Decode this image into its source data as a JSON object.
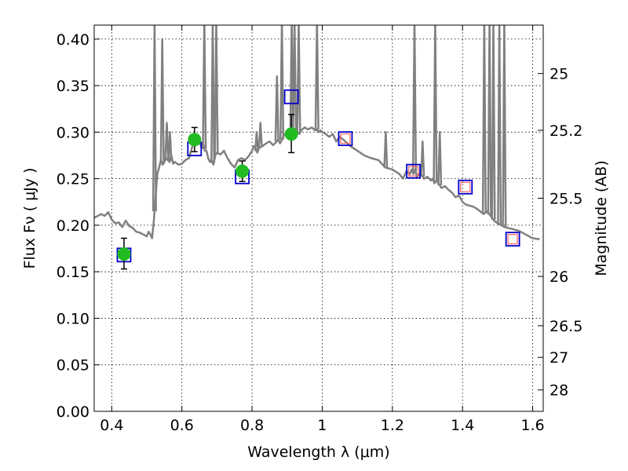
{
  "chart_data": {
    "type": "scatter",
    "xlabel": "Wavelength  λ (μm)",
    "ylabel": "Flux  Fν  ( μJy )",
    "ylabel_right": "Magnitude (AB)",
    "xlim": [
      0.35,
      1.63
    ],
    "ylim": [
      0.0,
      0.415
    ],
    "grid": true,
    "x_ticks": [
      0.4,
      0.6,
      0.8,
      1.0,
      1.2,
      1.4,
      1.6
    ],
    "x_tick_labels": [
      "0.4",
      "0.6",
      "0.8",
      "1",
      "1.2",
      "1.4",
      "1.6"
    ],
    "y_ticks": [
      0.0,
      0.05,
      0.1,
      0.15,
      0.2,
      0.25,
      0.3,
      0.35,
      0.4
    ],
    "y_tick_labels": [
      "0.00",
      "0.05",
      "0.10",
      "0.15",
      "0.20",
      "0.25",
      "0.30",
      "0.35",
      "0.40"
    ],
    "right_ticks": [
      {
        "flux": 0.363,
        "label": "25"
      },
      {
        "flux": 0.302,
        "label": "25.2"
      },
      {
        "flux": 0.229,
        "label": "25.5"
      },
      {
        "flux": 0.145,
        "label": "26"
      },
      {
        "flux": 0.092,
        "label": "26.5"
      },
      {
        "flux": 0.058,
        "label": "27"
      },
      {
        "flux": 0.023,
        "label": "28"
      }
    ],
    "series": [
      {
        "style": "line",
        "color": "#808080",
        "x": [
          0.35,
          0.37,
          0.38,
          0.39,
          0.4,
          0.41,
          0.42,
          0.43,
          0.44,
          0.45,
          0.46,
          0.47,
          0.48,
          0.49,
          0.5,
          0.505,
          0.51,
          0.515,
          0.52,
          0.525,
          0.53,
          0.535,
          0.54,
          0.545,
          0.55,
          0.555,
          0.56,
          0.565,
          0.57,
          0.575,
          0.58,
          0.59,
          0.6,
          0.61,
          0.62,
          0.63,
          0.64,
          0.645,
          0.65,
          0.655,
          0.66,
          0.665,
          0.67,
          0.675,
          0.68,
          0.685,
          0.69,
          0.695,
          0.7,
          0.71,
          0.72,
          0.73,
          0.74,
          0.75,
          0.76,
          0.77,
          0.78,
          0.79,
          0.8,
          0.805,
          0.81,
          0.815,
          0.82,
          0.83,
          0.84,
          0.85,
          0.86,
          0.87,
          0.875,
          0.88,
          0.885,
          0.89,
          0.895,
          0.9,
          0.905,
          0.91,
          0.915,
          0.92,
          0.925,
          0.93,
          0.935,
          0.94,
          0.95,
          0.96,
          0.97,
          0.98,
          0.985,
          0.99,
          0.995,
          1.0,
          1.01,
          1.02,
          1.03,
          1.04,
          1.05,
          1.06,
          1.08,
          1.1,
          1.12,
          1.14,
          1.16,
          1.18,
          1.2,
          1.22,
          1.23,
          1.24,
          1.25,
          1.255,
          1.26,
          1.265,
          1.27,
          1.28,
          1.29,
          1.3,
          1.31,
          1.315,
          1.32,
          1.325,
          1.33,
          1.34,
          1.35,
          1.36,
          1.37,
          1.38,
          1.39,
          1.4,
          1.41,
          1.42,
          1.43,
          1.44,
          1.45,
          1.46,
          1.47,
          1.48,
          1.49,
          1.5,
          1.52,
          1.54,
          1.56,
          1.58,
          1.6,
          1.62
        ],
        "y": [
          0.208,
          0.212,
          0.21,
          0.214,
          0.206,
          0.202,
          0.203,
          0.198,
          0.205,
          0.199,
          0.197,
          0.193,
          0.192,
          0.19,
          0.188,
          0.193,
          0.19,
          0.186,
          0.205,
          0.23,
          0.255,
          0.262,
          0.27,
          0.265,
          0.268,
          0.272,
          0.27,
          0.268,
          0.275,
          0.266,
          0.268,
          0.265,
          0.266,
          0.27,
          0.272,
          0.285,
          0.29,
          0.288,
          0.29,
          0.284,
          0.289,
          0.28,
          0.28,
          0.272,
          0.268,
          0.27,
          0.265,
          0.275,
          0.278,
          0.276,
          0.28,
          0.272,
          0.266,
          0.262,
          0.27,
          0.272,
          0.27,
          0.274,
          0.28,
          0.285,
          0.282,
          0.278,
          0.283,
          0.285,
          0.288,
          0.29,
          0.286,
          0.29,
          0.292,
          0.288,
          0.292,
          0.296,
          0.298,
          0.3,
          0.296,
          0.293,
          0.296,
          0.3,
          0.302,
          0.3,
          0.298,
          0.302,
          0.305,
          0.303,
          0.305,
          0.302,
          0.303,
          0.3,
          0.302,
          0.3,
          0.298,
          0.295,
          0.298,
          0.29,
          0.295,
          0.292,
          0.285,
          0.28,
          0.275,
          0.272,
          0.27,
          0.262,
          0.26,
          0.255,
          0.25,
          0.258,
          0.255,
          0.26,
          0.255,
          0.26,
          0.252,
          0.256,
          0.25,
          0.252,
          0.248,
          0.25,
          0.245,
          0.248,
          0.246,
          0.24,
          0.242,
          0.238,
          0.235,
          0.23,
          0.232,
          0.225,
          0.222,
          0.221,
          0.22,
          0.218,
          0.215,
          0.212,
          0.215,
          0.21,
          0.205,
          0.202,
          0.198,
          0.196,
          0.194,
          0.19,
          0.186,
          0.185
        ]
      },
      {
        "style": "emission-lines",
        "color": "#808080",
        "lines": [
          {
            "x": 0.522,
            "peak": 0.42
          },
          {
            "x": 0.544,
            "peak": 0.4
          },
          {
            "x": 0.557,
            "peak": 0.31
          },
          {
            "x": 0.566,
            "peak": 0.3
          },
          {
            "x": 0.664,
            "peak": 0.42
          },
          {
            "x": 0.688,
            "peak": 0.42
          },
          {
            "x": 0.698,
            "peak": 0.42
          },
          {
            "x": 0.813,
            "peak": 0.3
          },
          {
            "x": 0.824,
            "peak": 0.31
          },
          {
            "x": 0.871,
            "peak": 0.36
          },
          {
            "x": 0.885,
            "peak": 0.42
          },
          {
            "x": 0.913,
            "peak": 0.42
          },
          {
            "x": 0.921,
            "peak": 0.42
          },
          {
            "x": 0.933,
            "peak": 0.42
          },
          {
            "x": 0.985,
            "peak": 0.42
          },
          {
            "x": 1.181,
            "peak": 0.3
          },
          {
            "x": 1.263,
            "peak": 0.42
          },
          {
            "x": 1.286,
            "peak": 0.29
          },
          {
            "x": 1.322,
            "peak": 0.42
          },
          {
            "x": 1.335,
            "peak": 0.3
          },
          {
            "x": 1.462,
            "peak": 0.42
          },
          {
            "x": 1.477,
            "peak": 0.42
          },
          {
            "x": 1.488,
            "peak": 0.42
          },
          {
            "x": 1.505,
            "peak": 0.42
          },
          {
            "x": 1.519,
            "peak": 0.42
          }
        ]
      },
      {
        "style": "open-square",
        "color": "#0000cc",
        "points": [
          {
            "x": 0.435,
            "y": 0.168
          },
          {
            "x": 0.636,
            "y": 0.282
          },
          {
            "x": 0.772,
            "y": 0.252
          },
          {
            "x": 0.912,
            "y": 0.338
          },
          {
            "x": 1.066,
            "y": 0.293
          },
          {
            "x": 1.26,
            "y": 0.258
          },
          {
            "x": 1.408,
            "y": 0.241
          },
          {
            "x": 1.543,
            "y": 0.185
          }
        ]
      },
      {
        "style": "open-square",
        "color": "#ff6666",
        "points": [
          {
            "x": 1.066,
            "y": 0.293
          },
          {
            "x": 1.26,
            "y": 0.258
          },
          {
            "x": 1.408,
            "y": 0.241
          },
          {
            "x": 1.543,
            "y": 0.185
          }
        ]
      },
      {
        "style": "dot-errorbar",
        "color": "#22bb22",
        "points": [
          {
            "x": 0.435,
            "y": 0.169,
            "yerr_low": 0.016,
            "yerr_high": 0.017
          },
          {
            "x": 0.636,
            "y": 0.292,
            "yerr_low": 0.013,
            "yerr_high": 0.013
          },
          {
            "x": 0.772,
            "y": 0.258,
            "yerr_low": 0.011,
            "yerr_high": 0.011
          },
          {
            "x": 0.912,
            "y": 0.298,
            "yerr_low": 0.02,
            "yerr_high": 0.021
          }
        ]
      }
    ]
  }
}
